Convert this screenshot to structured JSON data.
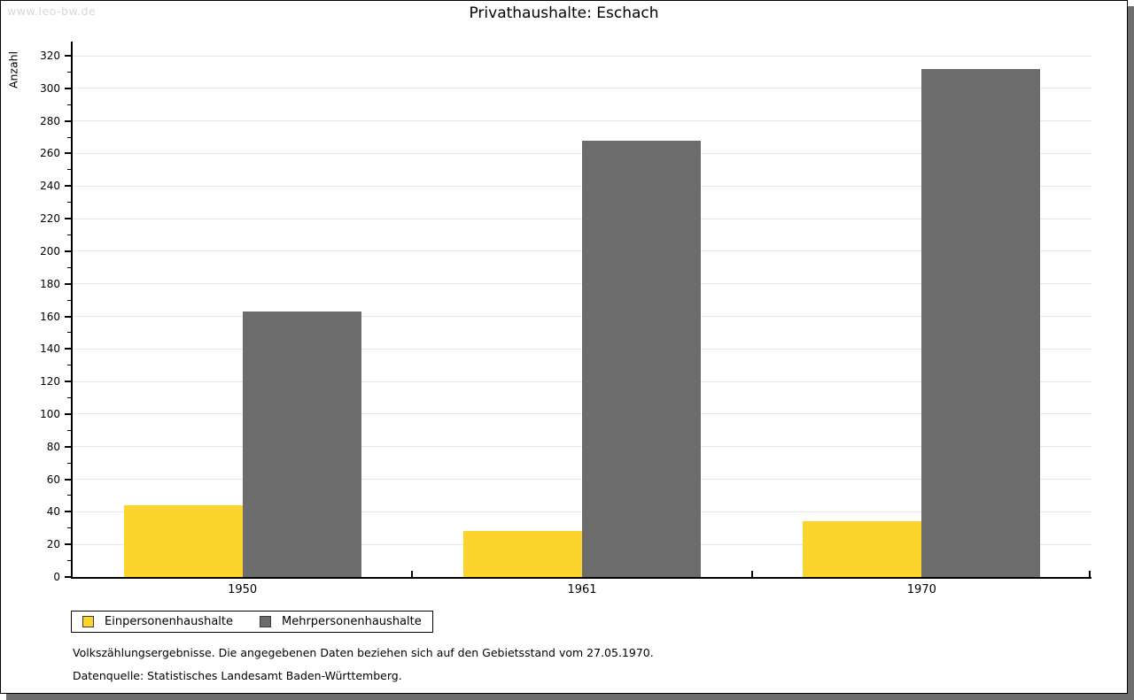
{
  "watermark": "www.leo-bw.de",
  "title": "Privathaushalte: Eschach",
  "chart_data": {
    "type": "bar",
    "title": "Privathaushalte: Eschach",
    "categories": [
      "1950",
      "1961",
      "1970"
    ],
    "series": [
      {
        "name": "Einpersonenhaushalte",
        "color": "#FCD42D",
        "values": [
          44,
          28,
          34
        ]
      },
      {
        "name": "Mehrpersonenhaushalte",
        "color": "#6C6C6C",
        "values": [
          163,
          268,
          312
        ]
      }
    ],
    "xlabel": "",
    "ylabel": "Anzahl",
    "ylim": [
      0,
      320
    ],
    "ytick_step": 20,
    "minor_tick_step": 10,
    "grid": true,
    "legend_position": "bottom-left"
  },
  "footer": {
    "line1": "Volkszählungsergebnisse. Die angegebenen Daten beziehen sich auf den Gebietsstand vom 27.05.1970.",
    "line2": "Datenquelle: Statistisches Landesamt Baden-Württemberg."
  }
}
